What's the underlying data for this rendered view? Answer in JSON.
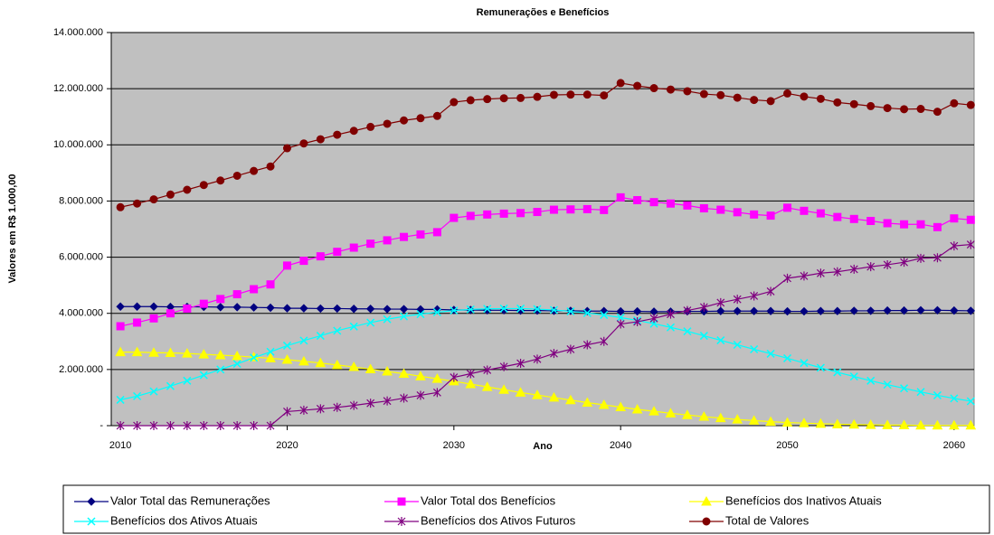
{
  "chart_data": {
    "type": "line",
    "title": "Remunerações e Benefícios",
    "xlabel": "Ano",
    "ylabel": "Valores em R$ 1.000,00",
    "x": [
      2010,
      2011,
      2012,
      2013,
      2014,
      2015,
      2016,
      2017,
      2018,
      2019,
      2020,
      2021,
      2022,
      2023,
      2024,
      2025,
      2026,
      2027,
      2028,
      2029,
      2030,
      2031,
      2032,
      2033,
      2034,
      2035,
      2036,
      2037,
      2038,
      2039,
      2040,
      2041,
      2042,
      2043,
      2044,
      2045,
      2046,
      2047,
      2048,
      2049,
      2050,
      2051,
      2052,
      2053,
      2054,
      2055,
      2056,
      2057,
      2058,
      2059,
      2060,
      2061
    ],
    "xlim": [
      2009.45,
      2061.2
    ],
    "xticks": [
      2010,
      2020,
      2030,
      2040,
      2050,
      2060
    ],
    "ylim": [
      0,
      14000000
    ],
    "yticks": [
      {
        "value": 0,
        "label": "-"
      },
      {
        "value": 2000000,
        "label": "2.000.000"
      },
      {
        "value": 4000000,
        "label": "4.000.000"
      },
      {
        "value": 6000000,
        "label": "6.000.000"
      },
      {
        "value": 8000000,
        "label": "8.000.000"
      },
      {
        "value": 10000000,
        "label": "10.000.000"
      },
      {
        "value": 12000000,
        "label": "12.000.000"
      },
      {
        "value": 14000000,
        "label": "14.000.000"
      }
    ],
    "grid": true,
    "legend": "bottom",
    "series": [
      {
        "name": "Valor Total das Remunerações",
        "color": "#000080",
        "marker": "diamond",
        "values": [
          4240000,
          4240000,
          4240000,
          4230000,
          4230000,
          4230000,
          4220000,
          4220000,
          4210000,
          4200000,
          4180000,
          4180000,
          4170000,
          4170000,
          4160000,
          4160000,
          4150000,
          4150000,
          4140000,
          4140000,
          4120000,
          4120000,
          4110000,
          4110000,
          4100000,
          4100000,
          4090000,
          4090000,
          4080000,
          4080000,
          4070000,
          4070000,
          4060000,
          4060000,
          4070000,
          4070000,
          4080000,
          4080000,
          4080000,
          4080000,
          4070000,
          4070000,
          4080000,
          4080000,
          4090000,
          4090000,
          4100000,
          4100000,
          4110000,
          4110000,
          4100000,
          4090000
        ]
      },
      {
        "name": "Valor Total dos Benefícios",
        "color": "#ff00ff",
        "marker": "square",
        "values": [
          3540000,
          3670000,
          3820000,
          4000000,
          4170000,
          4340000,
          4510000,
          4680000,
          4860000,
          5030000,
          5700000,
          5870000,
          6030000,
          6190000,
          6340000,
          6480000,
          6600000,
          6720000,
          6810000,
          6890000,
          7400000,
          7470000,
          7520000,
          7550000,
          7570000,
          7610000,
          7690000,
          7700000,
          7710000,
          7680000,
          8130000,
          8030000,
          7960000,
          7910000,
          7840000,
          7740000,
          7690000,
          7600000,
          7520000,
          7480000,
          7760000,
          7650000,
          7560000,
          7430000,
          7360000,
          7290000,
          7210000,
          7170000,
          7170000,
          7070000,
          7380000,
          7330000
        ]
      },
      {
        "name": "Benefícios dos Inativos Atuais",
        "color": "#ffff00",
        "marker": "triangle",
        "values": [
          2620000,
          2620000,
          2600000,
          2590000,
          2570000,
          2540000,
          2510000,
          2480000,
          2440000,
          2400000,
          2350000,
          2290000,
          2230000,
          2160000,
          2090000,
          2010000,
          1930000,
          1850000,
          1760000,
          1670000,
          1580000,
          1480000,
          1380000,
          1280000,
          1180000,
          1090000,
          1000000,
          910000,
          820000,
          740000,
          660000,
          580000,
          510000,
          440000,
          380000,
          320000,
          270000,
          220000,
          180000,
          140000,
          110000,
          90000,
          70000,
          50000,
          40000,
          30000,
          20000,
          20000,
          10000,
          10000,
          10000,
          10000
        ]
      },
      {
        "name": "Benefícios dos Ativos Atuais",
        "color": "#00ffff",
        "marker": "x",
        "values": [
          920000,
          1050000,
          1220000,
          1410000,
          1600000,
          1800000,
          2000000,
          2200000,
          2420000,
          2630000,
          2850000,
          3030000,
          3200000,
          3380000,
          3530000,
          3670000,
          3790000,
          3890000,
          3970000,
          4040000,
          4100000,
          4140000,
          4160000,
          4170000,
          4170000,
          4150000,
          4120000,
          4070000,
          4010000,
          3940000,
          3850000,
          3750000,
          3630000,
          3500000,
          3360000,
          3200000,
          3040000,
          2880000,
          2720000,
          2560000,
          2400000,
          2230000,
          2060000,
          1900000,
          1750000,
          1600000,
          1460000,
          1330000,
          1200000,
          1080000,
          970000,
          870000
        ]
      },
      {
        "name": "Benefícios dos Ativos Futuros",
        "color": "#800080",
        "marker": "star",
        "values": [
          0,
          0,
          0,
          0,
          0,
          0,
          0,
          0,
          0,
          0,
          500000,
          550000,
          600000,
          650000,
          720000,
          800000,
          880000,
          980000,
          1080000,
          1180000,
          1720000,
          1850000,
          1980000,
          2100000,
          2220000,
          2370000,
          2570000,
          2720000,
          2880000,
          3000000,
          3620000,
          3700000,
          3820000,
          3970000,
          4100000,
          4220000,
          4380000,
          4500000,
          4620000,
          4780000,
          5250000,
          5330000,
          5430000,
          5480000,
          5570000,
          5660000,
          5730000,
          5820000,
          5960000,
          5980000,
          6400000,
          6450000
        ]
      },
      {
        "name": "Total de Valores",
        "color": "#800000",
        "marker": "circle",
        "values": [
          7780000,
          7910000,
          8060000,
          8230000,
          8400000,
          8570000,
          8730000,
          8900000,
          9070000,
          9230000,
          9880000,
          10050000,
          10200000,
          10360000,
          10500000,
          10640000,
          10750000,
          10870000,
          10950000,
          11030000,
          11520000,
          11590000,
          11630000,
          11660000,
          11670000,
          11710000,
          11780000,
          11790000,
          11790000,
          11760000,
          12200000,
          12100000,
          12020000,
          11970000,
          11910000,
          11810000,
          11770000,
          11680000,
          11600000,
          11560000,
          11830000,
          11720000,
          11640000,
          11510000,
          11450000,
          11380000,
          11310000,
          11270000,
          11280000,
          11180000,
          11480000,
          11420000
        ]
      }
    ]
  }
}
